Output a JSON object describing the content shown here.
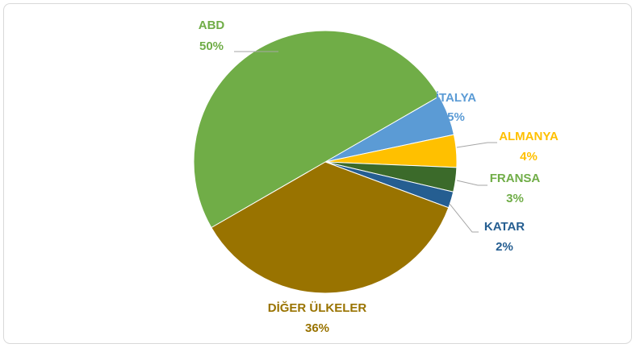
{
  "chart_data": {
    "type": "pie",
    "categories": [
      "İTALYA",
      "ALMANYA",
      "FRANSA",
      "KATAR",
      "DİĞER ÜLKELER",
      "ABD"
    ],
    "values": [
      5,
      4,
      3,
      2,
      36,
      50
    ],
    "value_labels": [
      "5%",
      "4%",
      "3%",
      "2%",
      "36%",
      "50%"
    ],
    "colors": [
      "#5b9bd5",
      "#ffc000",
      "#3b6a2a",
      "#255e91",
      "#997300",
      "#70ad47"
    ],
    "label_colors": [
      "#5b9bd5",
      "#ffc000",
      "#70ad47",
      "#255e91",
      "#997300",
      "#70ad47"
    ]
  }
}
